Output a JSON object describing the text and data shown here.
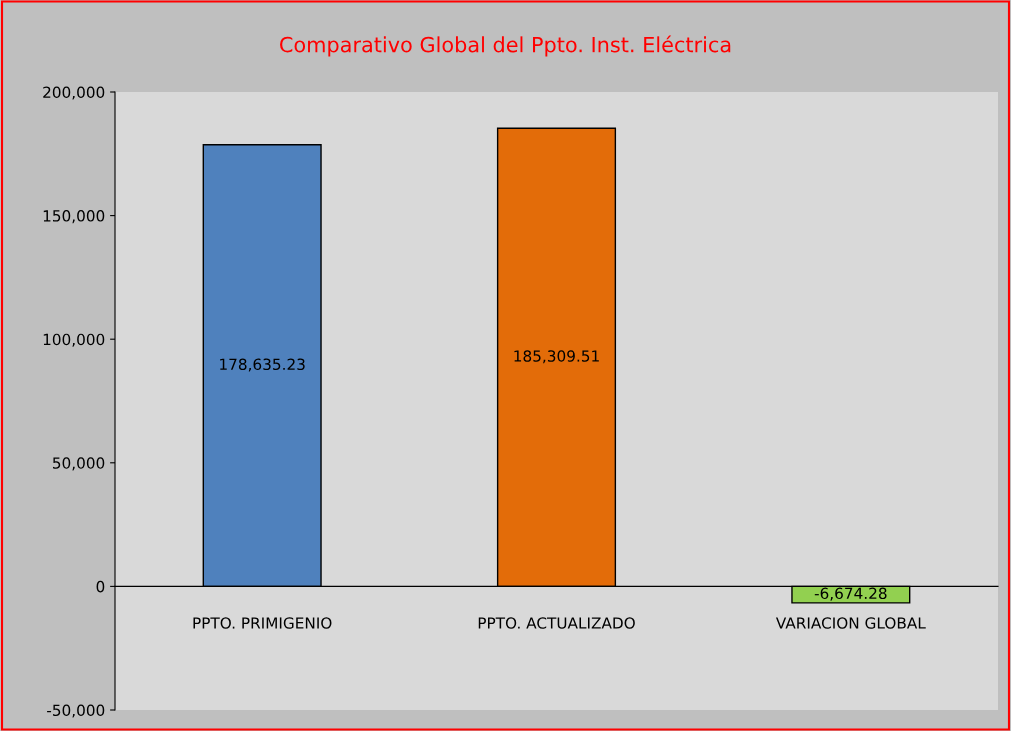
{
  "chart_data": {
    "type": "bar",
    "title": "Comparativo Global del Ppto. Inst. Eléctrica",
    "categories": [
      "PPTO. PRIMIGENIO",
      "PPTO. ACTUALIZADO",
      "VARIACION GLOBAL"
    ],
    "values": [
      178635.23,
      185309.51,
      -6674.28
    ],
    "colors": [
      "#4f81bd",
      "#e36c09",
      "#92d050"
    ],
    "value_labels": [
      "178,635.23",
      "185,309.51",
      "-6,674.28"
    ],
    "ylim": [
      -50000,
      200000
    ],
    "yticks": [
      {
        "value": -50000,
        "label": "-50,000"
      },
      0,
      {
        "value": 50000,
        "label": "50,000"
      },
      {
        "value": 100000,
        "label": "100,000"
      },
      {
        "value": 150000,
        "label": "150,000"
      },
      {
        "value": 200000,
        "label": "200,000"
      }
    ],
    "grid": false,
    "legend": false
  }
}
